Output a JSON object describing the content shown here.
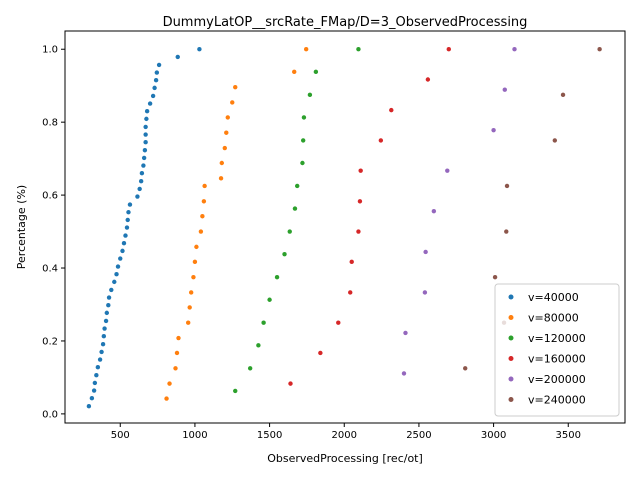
{
  "chart_data": {
    "type": "scatter",
    "title": "DummyLatOP__srcRate_FMap/D=3_ObservedProcessing",
    "xlabel": "ObservedProcessing [rec/ot]",
    "ylabel": "Percentage (%)",
    "xlim": [
      130,
      3880
    ],
    "ylim": [
      -0.025,
      1.05
    ],
    "xticks": [
      500,
      1000,
      1500,
      2000,
      2500,
      3000,
      3500
    ],
    "yticks": [
      0.0,
      0.2,
      0.4,
      0.6,
      0.8,
      1.0
    ],
    "grid": false,
    "legend_position": "lower-right",
    "series": [
      {
        "name": "v=40000",
        "color": "#1f77b4",
        "points": [
          [
            290,
            0.021
          ],
          [
            310,
            0.043
          ],
          [
            325,
            0.064
          ],
          [
            330,
            0.085
          ],
          [
            340,
            0.106
          ],
          [
            350,
            0.128
          ],
          [
            365,
            0.149
          ],
          [
            375,
            0.17
          ],
          [
            385,
            0.191
          ],
          [
            390,
            0.213
          ],
          [
            395,
            0.234
          ],
          [
            405,
            0.255
          ],
          [
            410,
            0.277
          ],
          [
            420,
            0.298
          ],
          [
            425,
            0.319
          ],
          [
            440,
            0.34
          ],
          [
            460,
            0.362
          ],
          [
            475,
            0.383
          ],
          [
            485,
            0.404
          ],
          [
            500,
            0.426
          ],
          [
            515,
            0.447
          ],
          [
            525,
            0.468
          ],
          [
            535,
            0.489
          ],
          [
            545,
            0.511
          ],
          [
            550,
            0.532
          ],
          [
            555,
            0.553
          ],
          [
            565,
            0.574
          ],
          [
            615,
            0.596
          ],
          [
            630,
            0.617
          ],
          [
            640,
            0.638
          ],
          [
            645,
            0.66
          ],
          [
            655,
            0.681
          ],
          [
            660,
            0.702
          ],
          [
            665,
            0.723
          ],
          [
            670,
            0.745
          ],
          [
            670,
            0.766
          ],
          [
            670,
            0.787
          ],
          [
            675,
            0.809
          ],
          [
            680,
            0.83
          ],
          [
            700,
            0.851
          ],
          [
            720,
            0.872
          ],
          [
            730,
            0.894
          ],
          [
            740,
            0.915
          ],
          [
            745,
            0.936
          ],
          [
            760,
            0.957
          ],
          [
            885,
            0.979
          ],
          [
            1030,
            1.0
          ]
        ]
      },
      {
        "name": "v=80000",
        "color": "#ff7f0e",
        "points": [
          [
            810,
            0.042
          ],
          [
            830,
            0.083
          ],
          [
            870,
            0.125
          ],
          [
            880,
            0.167
          ],
          [
            890,
            0.208
          ],
          [
            955,
            0.25
          ],
          [
            965,
            0.292
          ],
          [
            975,
            0.333
          ],
          [
            990,
            0.375
          ],
          [
            1000,
            0.417
          ],
          [
            1010,
            0.458
          ],
          [
            1040,
            0.5
          ],
          [
            1050,
            0.542
          ],
          [
            1060,
            0.583
          ],
          [
            1065,
            0.625
          ],
          [
            1175,
            0.646
          ],
          [
            1180,
            0.688
          ],
          [
            1200,
            0.729
          ],
          [
            1210,
            0.771
          ],
          [
            1220,
            0.813
          ],
          [
            1250,
            0.854
          ],
          [
            1270,
            0.896
          ],
          [
            1665,
            0.938
          ],
          [
            1745,
            1.0
          ]
        ]
      },
      {
        "name": "v=120000",
        "color": "#2ca02c",
        "points": [
          [
            1270,
            0.063
          ],
          [
            1370,
            0.125
          ],
          [
            1425,
            0.188
          ],
          [
            1460,
            0.25
          ],
          [
            1500,
            0.313
          ],
          [
            1550,
            0.375
          ],
          [
            1600,
            0.438
          ],
          [
            1635,
            0.5
          ],
          [
            1670,
            0.563
          ],
          [
            1685,
            0.625
          ],
          [
            1720,
            0.688
          ],
          [
            1725,
            0.75
          ],
          [
            1730,
            0.813
          ],
          [
            1770,
            0.875
          ],
          [
            1810,
            0.938
          ],
          [
            2095,
            1.0
          ]
        ]
      },
      {
        "name": "v=160000",
        "color": "#d62728",
        "points": [
          [
            1640,
            0.083
          ],
          [
            1840,
            0.167
          ],
          [
            1960,
            0.25
          ],
          [
            2040,
            0.333
          ],
          [
            2050,
            0.417
          ],
          [
            2095,
            0.5
          ],
          [
            2105,
            0.583
          ],
          [
            2110,
            0.667
          ],
          [
            2245,
            0.75
          ],
          [
            2315,
            0.833
          ],
          [
            2560,
            0.917
          ],
          [
            2700,
            1.0
          ]
        ]
      },
      {
        "name": "v=200000",
        "color": "#9467bd",
        "points": [
          [
            2400,
            0.111
          ],
          [
            2410,
            0.222
          ],
          [
            2540,
            0.333
          ],
          [
            2545,
            0.444
          ],
          [
            2600,
            0.556
          ],
          [
            2690,
            0.667
          ],
          [
            3000,
            0.778
          ],
          [
            3075,
            0.889
          ],
          [
            3140,
            1.0
          ]
        ]
      },
      {
        "name": "v=240000",
        "color": "#8c564b",
        "points": [
          [
            2810,
            0.125
          ],
          [
            3070,
            0.25
          ],
          [
            3010,
            0.375
          ],
          [
            3085,
            0.5
          ],
          [
            3090,
            0.625
          ],
          [
            3410,
            0.75
          ],
          [
            3465,
            0.875
          ],
          [
            3710,
            1.0
          ]
        ]
      }
    ]
  }
}
